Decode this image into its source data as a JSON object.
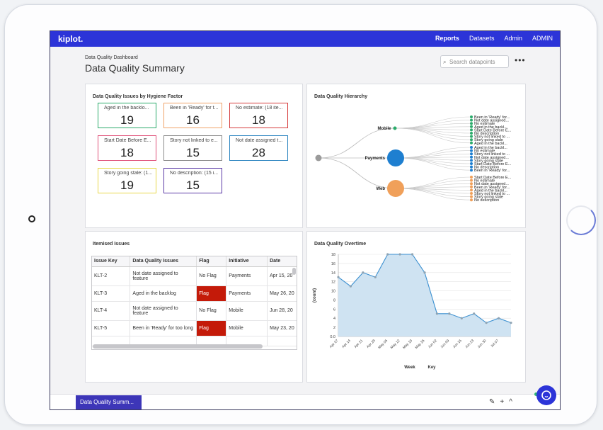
{
  "app": {
    "logo": "kiplot."
  },
  "nav": {
    "reports": "Reports",
    "datasets": "Datasets",
    "admin": "Admin",
    "user": "ADMIN"
  },
  "page": {
    "subtitle": "Data Quality Dashboard",
    "title": "Data Quality Summary"
  },
  "search": {
    "placeholder": "Search datapoints"
  },
  "hygiene": {
    "title": "Data Quality Issues by Hygiene Factor",
    "metrics": [
      {
        "label": "Aged in the backlo...",
        "value": "19",
        "color": "#2bab6b"
      },
      {
        "label": "Been in 'Ready' for t...",
        "value": "16",
        "color": "#f0a36a"
      },
      {
        "label": "No estimate: (18 ite...",
        "value": "18",
        "color": "#d63d3d"
      },
      {
        "label": "Start Date Before E...",
        "value": "18",
        "color": "#e0527a"
      },
      {
        "label": "Story not linked to e...",
        "value": "15",
        "color": "#8a8a8a"
      },
      {
        "label": "Not date assigned t...",
        "value": "28",
        "color": "#2e86c1"
      },
      {
        "label": "Story going stale: (1...",
        "value": "19",
        "color": "#e8d84a"
      },
      {
        "label": "No description: (15 i...",
        "value": "15",
        "color": "#5b3aa6"
      }
    ]
  },
  "hierarchy": {
    "title": "Data Quality Hierarchy",
    "groups": [
      {
        "name": "Mobile",
        "color": "#2bab6b",
        "leaves": [
          "Been in 'Ready' for...",
          "Not date assigned...",
          "No estimate",
          "Aged in the backl...",
          "Start Date Before E...",
          "No description",
          "Story not linked to ...",
          "Story going stale",
          "Aged in the backl..."
        ]
      },
      {
        "name": "Payments",
        "color": "#1e7fd0",
        "leaves": [
          "Aged in the backl...",
          "No estimate",
          "Story not linked to ...",
          "Not date assigned...",
          "Story going stale",
          "Start Date Before E...",
          "No description",
          "Been in 'Ready' for..."
        ]
      },
      {
        "name": "Web",
        "color": "#f0a05a",
        "leaves": [
          "Start Date Before E...",
          "No estimate",
          "Not date assigned...",
          "Been in 'Ready' for...",
          "Aged in the backl...",
          "Story not linked to ...",
          "Story going stale",
          "No description"
        ]
      }
    ]
  },
  "issues": {
    "title": "Itemised Issues",
    "columns": [
      "Issue Key",
      "Data Quality Issues",
      "Flag",
      "Initiative",
      "Date"
    ],
    "rows": [
      {
        "key": "KLT-2",
        "issue": "Not date assigned to feature",
        "flag": "No Flag",
        "flagged": false,
        "initiative": "Payments",
        "date": "Apr 15, 20"
      },
      {
        "key": "KLT-3",
        "issue": "Aged in the backlog",
        "flag": "Flag",
        "flagged": true,
        "initiative": "Payments",
        "date": "May 26, 20"
      },
      {
        "key": "KLT-4",
        "issue": "Not date assigned to feature",
        "flag": "No Flag",
        "flagged": false,
        "initiative": "Mobile",
        "date": "Jun 28, 20"
      },
      {
        "key": "KLT-5",
        "issue": "Been in 'Ready' for too long",
        "flag": "Flag",
        "flagged": true,
        "initiative": "Mobile",
        "date": "May 23, 20"
      }
    ]
  },
  "overtime": {
    "title": "Data Quality Overtime"
  },
  "chart_data": {
    "type": "area",
    "x": [
      "Apr 07",
      "Apr 14",
      "Apr 21",
      "Apr 28",
      "May 05",
      "May 12",
      "May 19",
      "May 26",
      "Jun 02",
      "Jun 09",
      "Jun 16",
      "Jun 23",
      "Jun 30",
      "Jul 07",
      "Jul 14"
    ],
    "tick_labels": [
      "Apr 07",
      "Apr 14",
      "Apr 21",
      "Apr 28",
      "May 05",
      "May 12",
      "May 19",
      "May 26",
      "Jun 02",
      "Jun 09",
      "Jun 16",
      "Jun 23",
      "Jun 30",
      "Jul 07"
    ],
    "series": [
      {
        "values": [
          13,
          11,
          14,
          13,
          18,
          18,
          18,
          14,
          5,
          5,
          4,
          5,
          3,
          4,
          3
        ]
      }
    ],
    "ylabel": "(count)",
    "xlabel": "Week",
    "legend_label": "Key",
    "ylim": [
      0,
      18
    ],
    "yticks": [
      "0.0",
      "2",
      "4",
      "6",
      "8",
      "10",
      "12",
      "14",
      "16",
      "18"
    ],
    "grid": true,
    "line_color": "#3a8fd0",
    "fill_color": "#cfe3f2"
  },
  "footer": {
    "tab_label": "Data Quality Summ...",
    "edit": "✎",
    "add": "+",
    "collapse": "^"
  }
}
